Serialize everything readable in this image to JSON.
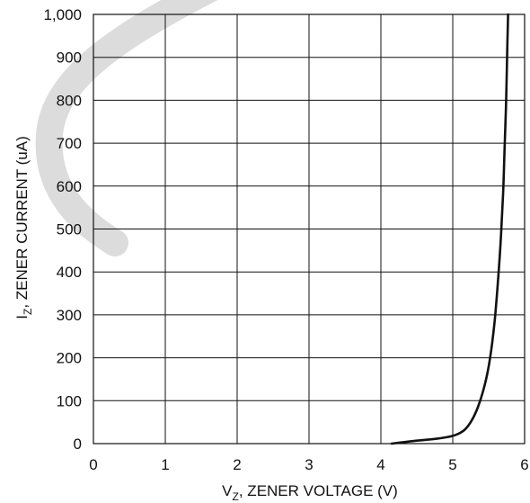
{
  "chart_data": {
    "type": "line",
    "title": "",
    "xlabel": {
      "main": "V",
      "sub": "Z",
      "rest": ", ZENER VOLTAGE (V)"
    },
    "ylabel": {
      "main": "I",
      "sub": "Z",
      "rest": ", ZENER CURRENT (uA)"
    },
    "xlim": [
      0,
      6
    ],
    "ylim": [
      0,
      1000
    ],
    "x_ticks": [
      0,
      1,
      2,
      3,
      4,
      5,
      6
    ],
    "y_ticks": [
      0,
      100,
      200,
      300,
      400,
      500,
      600,
      700,
      800,
      900,
      1000
    ],
    "x_tick_labels": [
      "0",
      "1",
      "2",
      "3",
      "4",
      "5",
      "6"
    ],
    "y_tick_labels": [
      "0",
      "100",
      "200",
      "300",
      "400",
      "500",
      "600",
      "700",
      "800",
      "900",
      "1,000"
    ],
    "grid": true,
    "series": [
      {
        "x": [
          4.15,
          4.3,
          4.5,
          4.8,
          5.0,
          5.15,
          5.25,
          5.35,
          5.45,
          5.52,
          5.58,
          5.63,
          5.67,
          5.7,
          5.72,
          5.74,
          5.75,
          5.76,
          5.77
        ],
        "y": [
          0,
          3,
          7,
          12,
          18,
          30,
          50,
          85,
          140,
          200,
          280,
          380,
          480,
          580,
          680,
          780,
          850,
          930,
          1000
        ]
      }
    ],
    "colors": {
      "line": "#111111",
      "grid": "#111111",
      "background": "#ffffff"
    }
  }
}
